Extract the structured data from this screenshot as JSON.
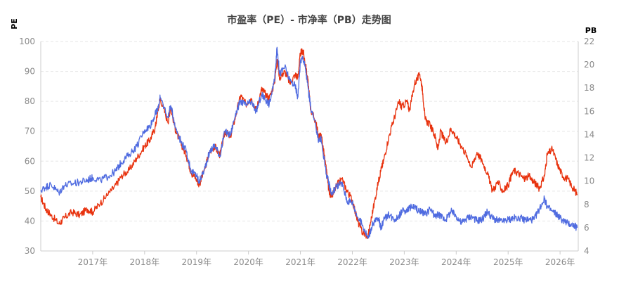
{
  "chart_data": {
    "type": "line",
    "title": "市盈率（PE）- 市净率（PB）走势图",
    "left_axis": {
      "label": "PE",
      "ylim": [
        30,
        100
      ],
      "ticks": [
        30,
        40,
        50,
        60,
        70,
        80,
        90,
        100
      ]
    },
    "right_axis": {
      "label": "PB",
      "ylim": [
        4,
        22
      ],
      "ticks": [
        4,
        6,
        8,
        10,
        12,
        14,
        16,
        18,
        20,
        22
      ]
    },
    "xlim": [
      2016.0,
      2026.35
    ],
    "x_ticks": [
      {
        "x": 2017.0,
        "label": "2017年"
      },
      {
        "x": 2018.0,
        "label": "2018年"
      },
      {
        "x": 2019.0,
        "label": "2019年"
      },
      {
        "x": 2020.0,
        "label": "2020年"
      },
      {
        "x": 2021.0,
        "label": "2021年"
      },
      {
        "x": 2022.0,
        "label": "2022年"
      },
      {
        "x": 2023.0,
        "label": "2023年"
      },
      {
        "x": 2024.0,
        "label": "2024年"
      },
      {
        "x": 2025.0,
        "label": "2025年"
      },
      {
        "x": 2026.0,
        "label": "2026年"
      }
    ],
    "grid": true,
    "colors": {
      "pe": "#e8330f",
      "pb": "#4f6be0",
      "grid": "#e6e6e6",
      "axis": "#cccccc"
    },
    "series": [
      {
        "key": "pe",
        "axis": "left",
        "x": [
          2016.0,
          2016.1,
          2016.2,
          2016.35,
          2016.45,
          2016.6,
          2016.75,
          2016.9,
          2017.0,
          2017.15,
          2017.3,
          2017.45,
          2017.55,
          2017.7,
          2017.85,
          2018.0,
          2018.1,
          2018.2,
          2018.25,
          2018.3,
          2018.45,
          2018.5,
          2018.6,
          2018.7,
          2018.8,
          2018.9,
          2019.0,
          2019.05,
          2019.15,
          2019.25,
          2019.35,
          2019.45,
          2019.55,
          2019.65,
          2019.75,
          2019.85,
          2019.95,
          2020.05,
          2020.15,
          2020.25,
          2020.3,
          2020.4,
          2020.5,
          2020.55,
          2020.6,
          2020.7,
          2020.8,
          2020.9,
          2020.95,
          2021.0,
          2021.05,
          2021.1,
          2021.15,
          2021.2,
          2021.3,
          2021.35,
          2021.4,
          2021.5,
          2021.55,
          2021.6,
          2021.7,
          2021.8,
          2021.9,
          2022.0,
          2022.1,
          2022.2,
          2022.3,
          2022.4,
          2022.5,
          2022.55,
          2022.6,
          2022.7,
          2022.8,
          2022.9,
          2022.95,
          2023.05,
          2023.1,
          2023.2,
          2023.3,
          2023.35,
          2023.4,
          2023.5,
          2023.6,
          2023.65,
          2023.7,
          2023.8,
          2023.9,
          2024.0,
          2024.1,
          2024.2,
          2024.3,
          2024.4,
          2024.5,
          2024.6,
          2024.7,
          2024.8,
          2024.9,
          2025.0,
          2025.1,
          2025.2,
          2025.3,
          2025.4,
          2025.5,
          2025.6,
          2025.7,
          2025.75,
          2025.85,
          2025.95,
          2026.05,
          2026.15,
          2026.25,
          2026.33
        ],
        "values": [
          48,
          44,
          42,
          39,
          41,
          43,
          42,
          44,
          43,
          46,
          49,
          52,
          55,
          57,
          61,
          65,
          67,
          71,
          76,
          81,
          73,
          78,
          70,
          66,
          62,
          56,
          54,
          52,
          57,
          63,
          65,
          62,
          70,
          68,
          75,
          82,
          79,
          81,
          77,
          84,
          83,
          81,
          86,
          94,
          88,
          90,
          86,
          89,
          88,
          96,
          97,
          92,
          86,
          77,
          73,
          68,
          69,
          57,
          50,
          48,
          52,
          54,
          50,
          47,
          40,
          36,
          35,
          44,
          53,
          57,
          60,
          68,
          74,
          80,
          78,
          80,
          77,
          86,
          89,
          84,
          74,
          72,
          68,
          64,
          70,
          66,
          71,
          68,
          65,
          62,
          58,
          63,
          60,
          56,
          50,
          53,
          50,
          52,
          57,
          56,
          54,
          55,
          53,
          51,
          55,
          62,
          64,
          59,
          55,
          54,
          51,
          49
        ]
      },
      {
        "key": "pb",
        "axis": "right",
        "x": [
          2016.0,
          2016.1,
          2016.2,
          2016.35,
          2016.45,
          2016.6,
          2016.75,
          2016.9,
          2017.0,
          2017.15,
          2017.3,
          2017.45,
          2017.55,
          2017.7,
          2017.85,
          2018.0,
          2018.1,
          2018.2,
          2018.25,
          2018.3,
          2018.45,
          2018.5,
          2018.6,
          2018.7,
          2018.8,
          2018.9,
          2019.0,
          2019.05,
          2019.15,
          2019.25,
          2019.35,
          2019.45,
          2019.55,
          2019.65,
          2019.75,
          2019.85,
          2019.95,
          2020.05,
          2020.15,
          2020.25,
          2020.3,
          2020.4,
          2020.5,
          2020.55,
          2020.6,
          2020.7,
          2020.8,
          2020.9,
          2020.95,
          2021.0,
          2021.05,
          2021.1,
          2021.15,
          2021.2,
          2021.3,
          2021.35,
          2021.4,
          2021.5,
          2021.55,
          2021.6,
          2021.7,
          2021.8,
          2021.9,
          2022.0,
          2022.1,
          2022.2,
          2022.3,
          2022.4,
          2022.5,
          2022.55,
          2022.6,
          2022.7,
          2022.8,
          2022.9,
          2022.95,
          2023.05,
          2023.1,
          2023.2,
          2023.3,
          2023.35,
          2023.4,
          2023.5,
          2023.6,
          2023.65,
          2023.7,
          2023.8,
          2023.9,
          2024.0,
          2024.1,
          2024.2,
          2024.3,
          2024.4,
          2024.5,
          2024.6,
          2024.7,
          2024.8,
          2024.9,
          2025.0,
          2025.1,
          2025.2,
          2025.3,
          2025.4,
          2025.5,
          2025.6,
          2025.7,
          2025.75,
          2025.85,
          2025.95,
          2026.05,
          2026.15,
          2026.25,
          2026.33
        ],
        "values": [
          9.2,
          9.5,
          9.7,
          9.0,
          9.6,
          9.8,
          9.9,
          10.1,
          10.3,
          10.1,
          10.4,
          10.9,
          11.6,
          12.3,
          13.0,
          14.4,
          14.7,
          15.7,
          16.2,
          17.2,
          15.5,
          16.5,
          14.6,
          13.4,
          12.6,
          10.8,
          10.5,
          9.9,
          11.0,
          12.5,
          13.1,
          12.2,
          14.3,
          13.9,
          15.8,
          16.9,
          16.5,
          16.8,
          16.0,
          17.4,
          17.2,
          16.6,
          18.6,
          21.5,
          19.2,
          19.8,
          18.6,
          18.2,
          17.2,
          20.3,
          20.6,
          19.6,
          17.9,
          16.3,
          14.6,
          13.5,
          13.6,
          10.6,
          9.8,
          8.9,
          9.6,
          9.8,
          8.3,
          8.2,
          6.9,
          6.2,
          5.1,
          6.4,
          6.8,
          6.0,
          6.6,
          7.2,
          6.7,
          7.0,
          7.4,
          7.5,
          7.7,
          7.8,
          7.4,
          7.3,
          7.1,
          7.6,
          6.9,
          7.2,
          7.0,
          6.7,
          7.4,
          7.0,
          6.4,
          6.8,
          7.0,
          6.6,
          6.7,
          7.4,
          6.8,
          6.6,
          6.5,
          6.7,
          6.8,
          6.9,
          6.7,
          6.7,
          6.7,
          7.6,
          8.5,
          7.8,
          7.4,
          7.1,
          6.6,
          6.4,
          6.2,
          6.0
        ]
      }
    ]
  }
}
